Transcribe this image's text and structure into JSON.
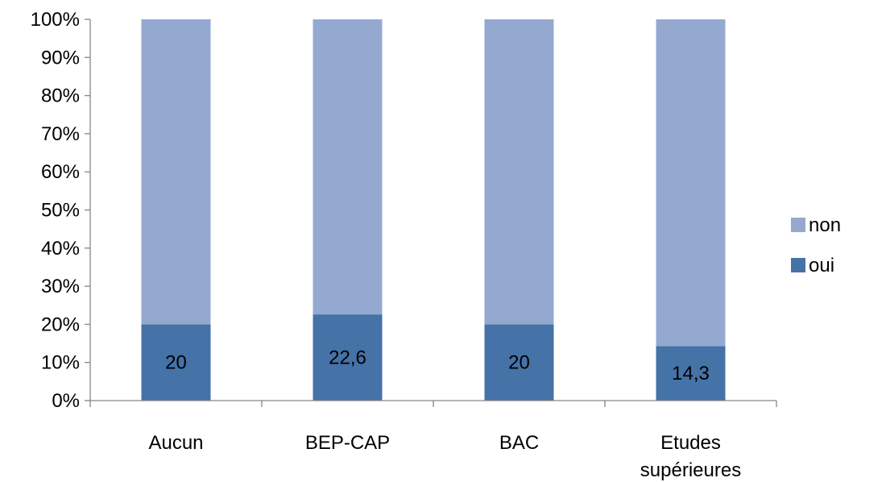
{
  "chart_data": {
    "type": "bar",
    "stacked": true,
    "normalized": true,
    "categories": [
      "Aucun",
      "BEP-CAP",
      "BAC",
      "Etudes|supérieures"
    ],
    "series": [
      {
        "name": "oui",
        "values": [
          20,
          22.6,
          20,
          14.3
        ],
        "labels": [
          "20",
          "22,6",
          "20",
          "14,3"
        ],
        "color": "#4572A7"
      },
      {
        "name": "non",
        "values": [
          80,
          77.4,
          80,
          85.7
        ],
        "color": "#95A9D0"
      }
    ],
    "yticks": [
      "0%",
      "10%",
      "20%",
      "30%",
      "40%",
      "50%",
      "60%",
      "70%",
      "80%",
      "90%",
      "100%"
    ],
    "ylim": [
      0,
      100
    ],
    "grid": false,
    "legend": {
      "position": "right",
      "order": [
        "non",
        "oui"
      ]
    },
    "title": "",
    "xlabel": "",
    "ylabel": ""
  }
}
